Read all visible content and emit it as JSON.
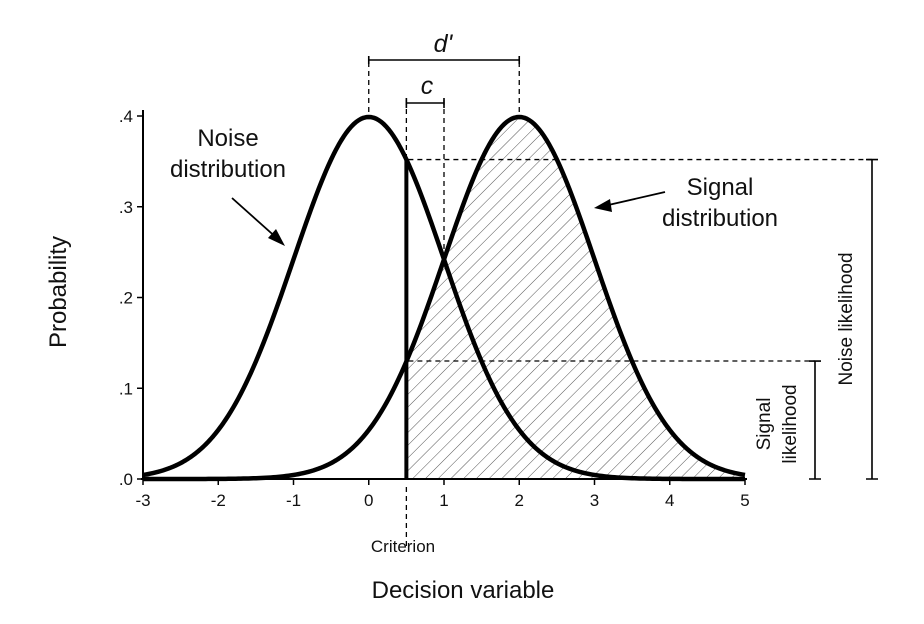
{
  "chart_data": {
    "type": "line",
    "xlabel": "Decision variable",
    "ylabel": "Probability",
    "xlim": [
      -3,
      5
    ],
    "ylim": [
      0,
      0.4
    ],
    "x_ticks": [
      {
        "value": -3,
        "label": "-3"
      },
      {
        "value": -2,
        "label": "-2"
      },
      {
        "value": -1,
        "label": "-1"
      },
      {
        "value": 0,
        "label": "0"
      },
      {
        "value": 1,
        "label": "1"
      },
      {
        "value": 2,
        "label": "2"
      },
      {
        "value": 3,
        "label": "3"
      },
      {
        "value": 4,
        "label": "4"
      },
      {
        "value": 5,
        "label": "5"
      }
    ],
    "y_ticks": [
      {
        "value": 0,
        "label": ".0"
      },
      {
        "value": 0.1,
        "label": ".1"
      },
      {
        "value": 0.2,
        "label": ".2"
      },
      {
        "value": 0.3,
        "label": ".3"
      },
      {
        "value": 0.4,
        "label": ".4"
      }
    ],
    "series": [
      {
        "name": "Noise distribution",
        "distribution": "normal",
        "mean": 0,
        "sd": 1
      },
      {
        "name": "Signal distribution",
        "distribution": "normal",
        "mean": 2,
        "sd": 1
      }
    ],
    "criterion": {
      "x": 0.5,
      "label": "Criterion"
    },
    "noise_likelihood_at_criterion": 0.352,
    "signal_likelihood_at_criterion": 0.13,
    "annotations": {
      "d_prime": {
        "label": "d'",
        "from": 0,
        "to": 2
      },
      "c": {
        "label": "c",
        "from": 0.5,
        "to": 1
      },
      "noise_label_lines": [
        "Noise",
        "distribution"
      ],
      "signal_label_lines": [
        "Signal",
        "distribution"
      ],
      "noise_likelihood": "Noise likelihood",
      "signal_likelihood_lines": [
        "Signal",
        "likelihood"
      ]
    }
  },
  "colors": {
    "curve": "#000000",
    "hatch": "#555555",
    "text": "#111111"
  }
}
